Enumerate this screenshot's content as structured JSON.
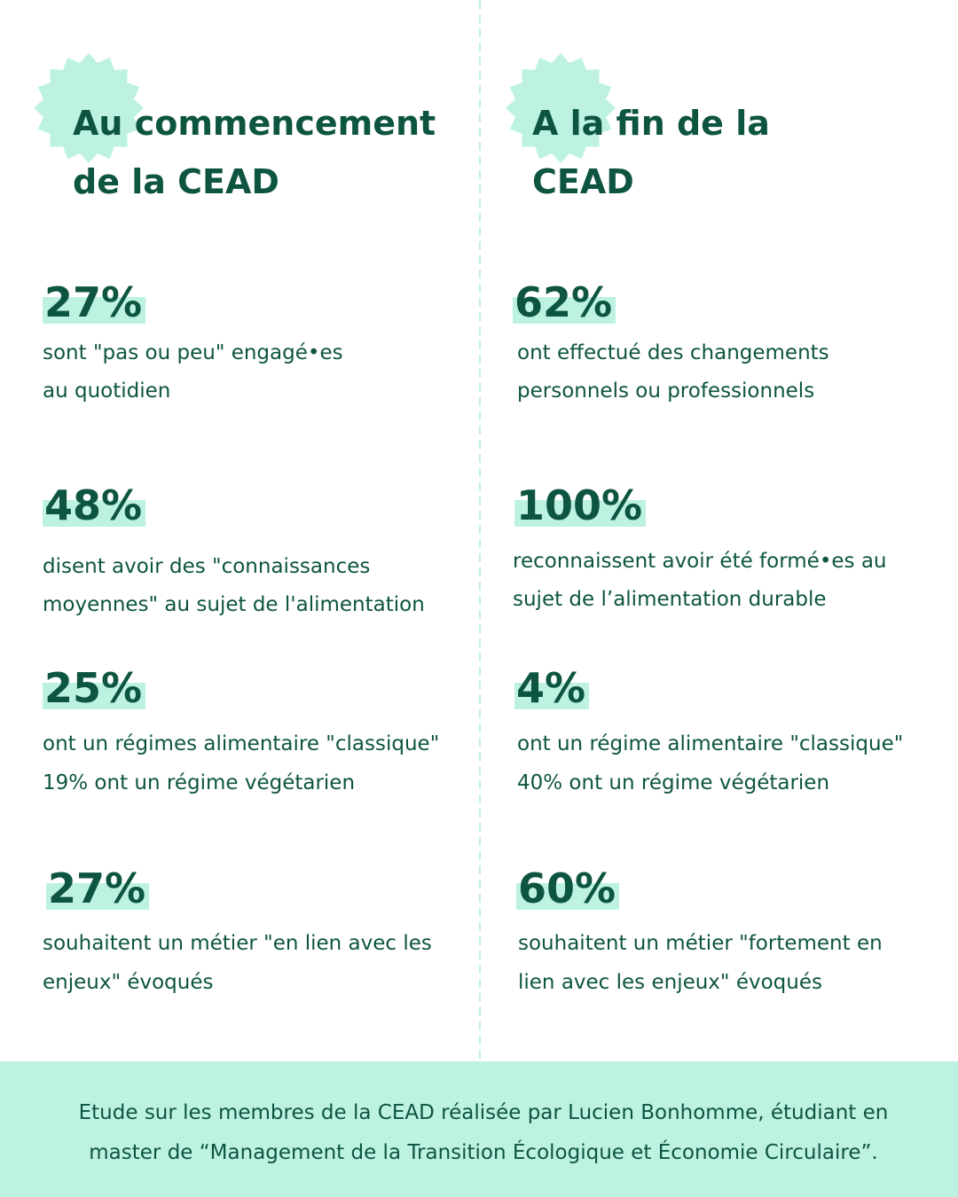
{
  "columns": [
    {
      "title": [
        "Au commencement",
        "de la CEAD"
      ],
      "stats": [
        {
          "value": "27%",
          "text": [
            "sont \"pas ou peu\" engagé•es",
            "au quotidien"
          ]
        },
        {
          "value": "48%",
          "text": [
            "disent avoir des \"connaissances",
            "moyennes\" au sujet de l'alimentation"
          ]
        },
        {
          "value": "25%",
          "text": [
            "ont un régimes alimentaire \"classique\"",
            "19% ont un régime végétarien"
          ]
        },
        {
          "value": "27%",
          "text": [
            "souhaitent un métier \"en lien avec les",
            "enjeux\" évoqués"
          ]
        }
      ]
    },
    {
      "title": [
        "A la fin de la",
        "CEAD"
      ],
      "stats": [
        {
          "value": "62%",
          "text": [
            "ont effectué des changements",
            "personnels ou professionnels"
          ]
        },
        {
          "value": "100%",
          "text": [
            "reconnaissent avoir été formé•es au",
            "sujet de l’alimentation durable"
          ]
        },
        {
          "value": "4%",
          "text": [
            "ont un régime alimentaire \"classique\"",
            "40% ont un régime végétarien"
          ]
        },
        {
          "value": "60%",
          "text": [
            "souhaitent un métier \"fortement en",
            "lien avec les enjeux\" évoqués"
          ]
        }
      ]
    }
  ],
  "footer": [
    "Etude sur les membres de la CEAD réalisée par Lucien Bonhomme, étudiant en",
    "master de “Management de la Transition Écologique et Économie Circulaire”."
  ]
}
